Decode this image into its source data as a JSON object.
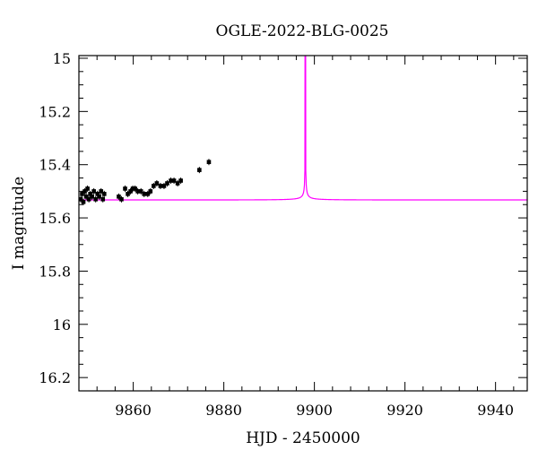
{
  "chart_data": {
    "type": "scatter",
    "title": "OGLE-2022-BLG-0025",
    "xlabel": "HJD - 2450000",
    "ylabel": "I magnitude",
    "xlim": [
      9848,
      9947
    ],
    "ylim": [
      16.25,
      14.99
    ],
    "y_inverted": true,
    "x_ticks": [
      9860,
      9880,
      9900,
      9920,
      9940
    ],
    "y_ticks": [
      15,
      15.2,
      15.4,
      15.6,
      15.8,
      16,
      16.2
    ],
    "x_tick_labels": [
      "9860",
      "9880",
      "9900",
      "9920",
      "9940"
    ],
    "y_tick_labels": [
      "15",
      "15.2",
      "15.4",
      "15.6",
      "15.8",
      "16",
      "16.2"
    ],
    "grid": false,
    "colors": {
      "model": "#ff00ff",
      "points": "#000000",
      "axes": "#000000"
    },
    "series": [
      {
        "type": "scatter",
        "x": [
          9848.4,
          9848.7,
          9849.0,
          9849.3,
          9849.6,
          9849.9,
          9850.2,
          9850.5,
          9850.9,
          9851.3,
          9851.7,
          9852.1,
          9852.5,
          9852.9,
          9853.3,
          9853.6,
          9856.8,
          9857.4,
          9858.2,
          9858.8,
          9859.4,
          9859.9,
          9860.4,
          9861.0,
          9861.7,
          9862.4,
          9863.2,
          9863.8,
          9864.5,
          9865.2,
          9866.0,
          9866.8,
          9867.5,
          9868.3,
          9869.0,
          9869.8,
          9870.5,
          9874.6,
          9876.7
        ],
        "y": [
          15.53,
          15.51,
          15.54,
          15.5,
          15.52,
          15.49,
          15.53,
          15.51,
          15.52,
          15.5,
          15.53,
          15.51,
          15.52,
          15.5,
          15.53,
          15.51,
          15.52,
          15.53,
          15.49,
          15.51,
          15.5,
          15.49,
          15.49,
          15.5,
          15.5,
          15.51,
          15.51,
          15.5,
          15.48,
          15.47,
          15.48,
          15.48,
          15.47,
          15.46,
          15.46,
          15.47,
          15.46,
          15.42,
          15.39
        ]
      },
      {
        "type": "line",
        "model": {
          "t0": 9898.0,
          "tE": 12.0,
          "u0": 0.0,
          "baseline": 15.5325,
          "fs": 0.0009
        }
      }
    ]
  }
}
